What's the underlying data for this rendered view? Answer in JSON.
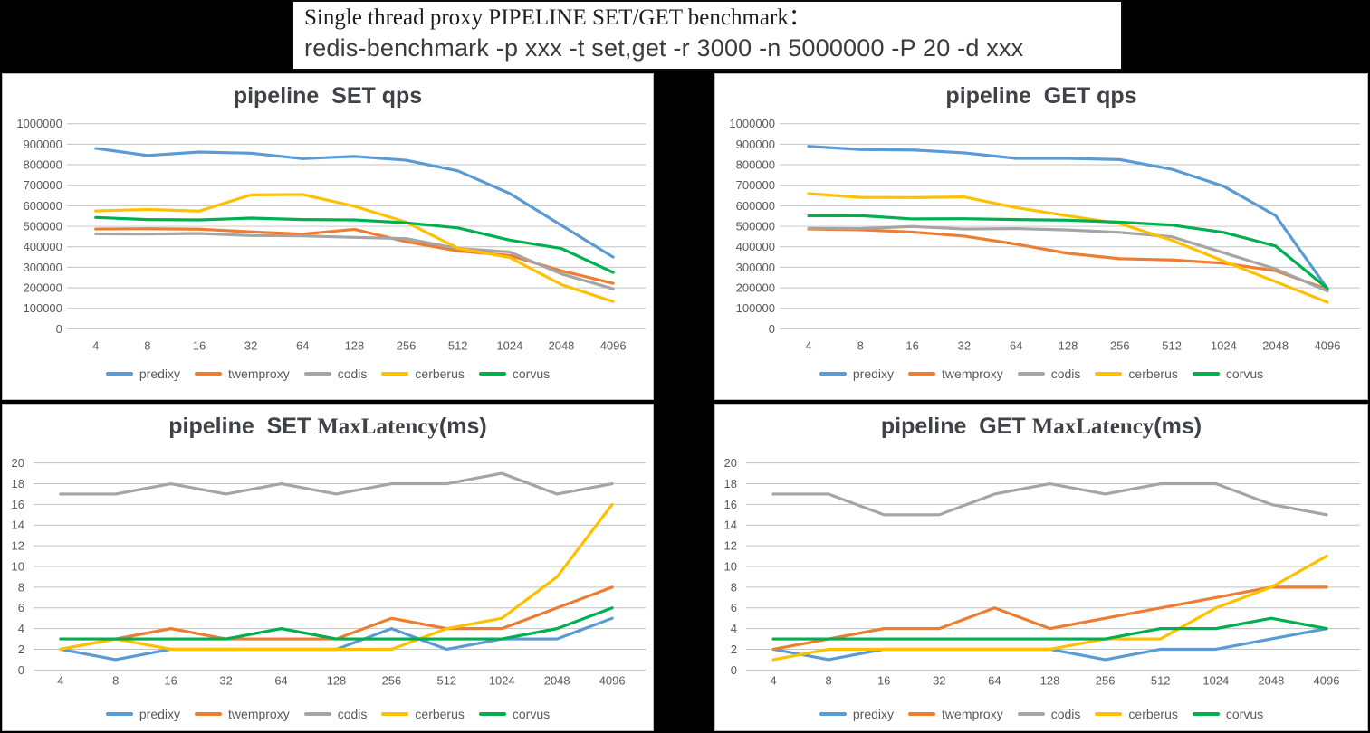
{
  "header": {
    "line1": "Single thread proxy PIPELINE SET/GET benchmark：",
    "line2": "redis-benchmark -p xxx -t set,get -r 3000 -n 5000000 -P 20 -d xxx"
  },
  "palette": {
    "predixy": "#5B9BD5",
    "twemproxy": "#ED7D31",
    "codis": "#A5A5A5",
    "cerberus": "#FFC000",
    "corvus": "#00B050"
  },
  "chart_data": [
    {
      "id": "pipeline-set-qps",
      "type": "line",
      "title_parts": {
        "sans1": "pipeline  SET qps",
        "serif": "",
        "sans2": ""
      },
      "categories": [
        "4",
        "8",
        "16",
        "32",
        "64",
        "128",
        "256",
        "512",
        "1024",
        "2048",
        "4096"
      ],
      "xlabel": "",
      "ylabel": "",
      "ylim": [
        0,
        1000000
      ],
      "ytick": 100000,
      "grid": true,
      "legend_position": "bottom",
      "series": [
        {
          "name": "predixy",
          "color": "#5B9BD5",
          "values": [
            880000,
            845000,
            862000,
            856000,
            830000,
            841000,
            822000,
            770000,
            660000,
            505000,
            350000
          ]
        },
        {
          "name": "twemproxy",
          "color": "#ED7D31",
          "values": [
            487000,
            488000,
            486000,
            473000,
            462000,
            485000,
            425000,
            380000,
            358000,
            283000,
            222000
          ]
        },
        {
          "name": "codis",
          "color": "#A5A5A5",
          "values": [
            463000,
            462000,
            465000,
            455000,
            453000,
            446000,
            440000,
            392000,
            375000,
            268000,
            195000
          ]
        },
        {
          "name": "cerberus",
          "color": "#FFC000",
          "values": [
            575000,
            582000,
            574000,
            653000,
            655000,
            598000,
            520000,
            393000,
            348000,
            216000,
            133000
          ]
        },
        {
          "name": "corvus",
          "color": "#00B050",
          "values": [
            543000,
            533000,
            531000,
            540000,
            533000,
            531000,
            517000,
            492000,
            433000,
            392000,
            275000
          ]
        }
      ]
    },
    {
      "id": "pipeline-get-qps",
      "type": "line",
      "title_parts": {
        "sans1": "pipeline  GET qps",
        "serif": "",
        "sans2": ""
      },
      "categories": [
        "4",
        "8",
        "16",
        "32",
        "64",
        "128",
        "256",
        "512",
        "1024",
        "2048",
        "4096"
      ],
      "xlabel": "",
      "ylabel": "",
      "ylim": [
        0,
        1000000
      ],
      "ytick": 100000,
      "grid": true,
      "legend_position": "bottom",
      "series": [
        {
          "name": "predixy",
          "color": "#5B9BD5",
          "values": [
            890000,
            874000,
            872000,
            858000,
            831000,
            831000,
            825000,
            778000,
            695000,
            552000,
            196000
          ]
        },
        {
          "name": "twemproxy",
          "color": "#ED7D31",
          "values": [
            487000,
            483000,
            472000,
            452000,
            413000,
            368000,
            342000,
            336000,
            320000,
            283000,
            193000
          ]
        },
        {
          "name": "codis",
          "color": "#A5A5A5",
          "values": [
            490000,
            489000,
            499000,
            487000,
            489000,
            482000,
            470000,
            449000,
            371000,
            292000,
            184000
          ]
        },
        {
          "name": "cerberus",
          "color": "#FFC000",
          "values": [
            659000,
            641000,
            640000,
            643000,
            591000,
            551000,
            513000,
            432000,
            330000,
            230000,
            130000
          ]
        },
        {
          "name": "corvus",
          "color": "#00B050",
          "values": [
            551000,
            552000,
            536000,
            537000,
            533000,
            530000,
            520000,
            506000,
            470000,
            404000,
            197000
          ]
        }
      ]
    },
    {
      "id": "pipeline-set-maxlatency",
      "type": "line",
      "title_parts": {
        "sans1": "pipeline  SET ",
        "serif": "MaxLatency",
        "sans2": "(ms)"
      },
      "categories": [
        "4",
        "8",
        "16",
        "32",
        "64",
        "128",
        "256",
        "512",
        "1024",
        "2048",
        "4096"
      ],
      "xlabel": "",
      "ylabel": "",
      "ylim": [
        0,
        20
      ],
      "ytick": 2,
      "grid": true,
      "legend_position": "bottom",
      "series": [
        {
          "name": "predixy",
          "color": "#5B9BD5",
          "values": [
            2,
            1,
            2,
            2,
            2,
            2,
            4,
            2,
            3,
            3,
            5
          ]
        },
        {
          "name": "twemproxy",
          "color": "#ED7D31",
          "values": [
            2,
            3,
            4,
            3,
            3,
            3,
            5,
            4,
            4,
            6,
            8
          ]
        },
        {
          "name": "codis",
          "color": "#A5A5A5",
          "values": [
            17,
            17,
            18,
            17,
            18,
            17,
            18,
            18,
            19,
            17,
            18
          ]
        },
        {
          "name": "cerberus",
          "color": "#FFC000",
          "values": [
            2,
            3,
            2,
            2,
            2,
            2,
            2,
            4,
            5,
            9,
            16
          ]
        },
        {
          "name": "corvus",
          "color": "#00B050",
          "values": [
            3,
            3,
            3,
            3,
            4,
            3,
            3,
            3,
            3,
            4,
            6
          ]
        }
      ]
    },
    {
      "id": "pipeline-get-maxlatency",
      "type": "line",
      "title_parts": {
        "sans1": "pipeline  GET ",
        "serif": "MaxLatency",
        "sans2": "(ms)"
      },
      "categories": [
        "4",
        "8",
        "16",
        "32",
        "64",
        "128",
        "256",
        "512",
        "1024",
        "2048",
        "4096"
      ],
      "xlabel": "",
      "ylabel": "",
      "ylim": [
        0,
        20
      ],
      "ytick": 2,
      "grid": true,
      "legend_position": "bottom",
      "series": [
        {
          "name": "predixy",
          "color": "#5B9BD5",
          "values": [
            2,
            1,
            2,
            2,
            2,
            2,
            1,
            2,
            2,
            3,
            4
          ]
        },
        {
          "name": "twemproxy",
          "color": "#ED7D31",
          "values": [
            2,
            3,
            4,
            4,
            6,
            4,
            5,
            6,
            7,
            8,
            8
          ]
        },
        {
          "name": "codis",
          "color": "#A5A5A5",
          "values": [
            17,
            17,
            15,
            15,
            17,
            18,
            17,
            18,
            18,
            16,
            15
          ]
        },
        {
          "name": "cerberus",
          "color": "#FFC000",
          "values": [
            1,
            2,
            2,
            2,
            2,
            2,
            3,
            3,
            6,
            8,
            11
          ]
        },
        {
          "name": "corvus",
          "color": "#00B050",
          "values": [
            3,
            3,
            3,
            3,
            3,
            3,
            3,
            4,
            4,
            5,
            4
          ]
        }
      ]
    }
  ]
}
